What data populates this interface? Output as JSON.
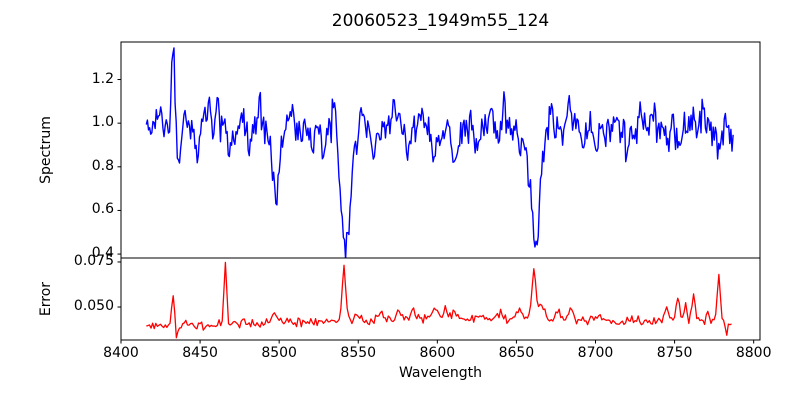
{
  "chart_data": {
    "type": "line",
    "title": "20060523_1949m55_124",
    "xlabel": "Wavelength",
    "xlim": [
      8400,
      8804
    ],
    "x_ticks": [
      8400,
      8450,
      8500,
      8550,
      8600,
      8650,
      8700,
      8750,
      8800
    ],
    "grid": false,
    "legend": "none",
    "subplots": [
      {
        "ylabel": "Spectrum",
        "ylim": [
          0.382,
          1.372
        ],
        "y_ticks": [
          0.4,
          0.6,
          0.8,
          1.0,
          1.2
        ],
        "y_tick_labels": [
          "0.4",
          "0.6",
          "0.8",
          "1.0",
          "1.2"
        ],
        "key_points": {
          "continuum_level": 1.0,
          "emission_spike": {
            "x": 8433,
            "y": 1.33
          },
          "absorption_lines": [
            {
              "x": 8498,
              "y": 0.7
            },
            {
              "x": 8542,
              "y": 0.44
            },
            {
              "x": 8662,
              "y": 0.46
            }
          ],
          "data_range": [
            8416,
            8787
          ]
        },
        "series": [
          {
            "name": "spectrum",
            "color": "#0000ff",
            "line_width": 1.4,
            "x_start": 8416,
            "x_end": 8787,
            "step": 0.7,
            "seed": 20060523,
            "noise_amplitude": 0.1,
            "baseline_points": [
              [
                8416,
                0.995
              ],
              [
                8480,
                0.98
              ],
              [
                8550,
                0.985
              ],
              [
                8620,
                0.975
              ],
              [
                8700,
                0.972
              ],
              [
                8787,
                0.962
              ]
            ],
            "features": [
              [
                8433,
                1.0,
                0.355
              ],
              [
                8436.5,
                1.1,
                -0.12
              ],
              [
                8448,
                1.2,
                -0.1
              ],
              [
                8455,
                1.0,
                0.08
              ],
              [
                8461,
                1.0,
                0.12
              ],
              [
                8469,
                1.4,
                -0.13
              ],
              [
                8476,
                1.0,
                0.07
              ],
              [
                8481,
                1.0,
                -0.09
              ],
              [
                8487,
                1.0,
                0.13
              ],
              [
                8498,
                2.2,
                -0.29
              ],
              [
                8508,
                1.1,
                0.12
              ],
              [
                8514,
                1.1,
                -0.09
              ],
              [
                8521,
                1.2,
                -0.11
              ],
              [
                8528,
                1.2,
                -0.13
              ],
              [
                8535,
                1.0,
                0.16
              ],
              [
                8542,
                3.2,
                -0.55
              ],
              [
                8552,
                1.1,
                0.08
              ],
              [
                8560,
                1.2,
                -0.11
              ],
              [
                8572,
                1.0,
                0.1
              ],
              [
                8582,
                1.2,
                -0.11
              ],
              [
                8590,
                1.0,
                0.08
              ],
              [
                8598,
                1.3,
                -0.16
              ],
              [
                8611,
                1.3,
                -0.15
              ],
              [
                8625,
                1.2,
                -0.09
              ],
              [
                8634,
                1.0,
                0.09
              ],
              [
                8642,
                1.0,
                0.1
              ],
              [
                8652,
                1.6,
                -0.1
              ],
              [
                8662,
                3.0,
                -0.52
              ],
              [
                8671,
                1.0,
                0.08
              ],
              [
                8683,
                1.0,
                0.16
              ],
              [
                8692,
                1.0,
                -0.08
              ],
              [
                8700,
                1.2,
                -0.1
              ],
              [
                8712,
                1.0,
                0.08
              ],
              [
                8720,
                1.2,
                -0.11
              ],
              [
                8729,
                1.0,
                0.07
              ],
              [
                8736,
                1.0,
                0.09
              ],
              [
                8745,
                1.0,
                -0.08
              ],
              [
                8753,
                1.2,
                -0.12
              ],
              [
                8762,
                1.0,
                0.08
              ],
              [
                8768,
                1.0,
                0.11
              ],
              [
                8778,
                1.2,
                -0.1
              ]
            ]
          }
        ]
      },
      {
        "ylabel": "Error",
        "ylim": [
          0.0317,
          0.0772
        ],
        "y_ticks": [
          0.05,
          0.075
        ],
        "y_tick_labels": [
          "0.050",
          "0.075"
        ],
        "key_points": {
          "baseline_level": 0.042,
          "spikes": [
            {
              "x": 8433,
              "y": 0.058
            },
            {
              "x": 8466,
              "y": 0.074
            },
            {
              "x": 8541,
              "y": 0.072
            },
            {
              "x": 8661,
              "y": 0.074
            },
            {
              "x": 8762,
              "y": 0.058
            },
            {
              "x": 8778,
              "y": 0.07
            }
          ],
          "data_range": [
            8416,
            8786
          ]
        },
        "series": [
          {
            "name": "error",
            "color": "#ff0000",
            "line_width": 1.3,
            "x_start": 8416,
            "x_end": 8786,
            "step": 1.0,
            "seed": 1949,
            "noise_amplitude": 0.003,
            "baseline_points": [
              [
                8416,
                0.0393
              ],
              [
                8450,
                0.04
              ],
              [
                8480,
                0.0408
              ],
              [
                8510,
                0.0415
              ],
              [
                8540,
                0.042
              ],
              [
                8570,
                0.0428
              ],
              [
                8600,
                0.0432
              ],
              [
                8640,
                0.043
              ],
              [
                8680,
                0.0428
              ],
              [
                8720,
                0.0422
              ],
              [
                8755,
                0.0425
              ],
              [
                8786,
                0.0408
              ]
            ],
            "features": [
              [
                8433,
                0.9,
                0.018
              ],
              [
                8435.5,
                0.7,
                -0.0075
              ],
              [
                8466,
                0.9,
                0.033
              ],
              [
                8497,
                1.5,
                0.006
              ],
              [
                8541,
                1.1,
                0.029
              ],
              [
                8550,
                1.5,
                0.003
              ],
              [
                8565,
                2.0,
                0.004
              ],
              [
                8576,
                2.0,
                0.005
              ],
              [
                8584,
                1.5,
                0.006
              ],
              [
                8598,
                1.5,
                0.007
              ],
              [
                8605,
                1.5,
                0.005
              ],
              [
                8611,
                1.5,
                0.005
              ],
              [
                8628,
                2.0,
                0.003
              ],
              [
                8640,
                2.0,
                0.004
              ],
              [
                8652,
                2.0,
                0.007
              ],
              [
                8661,
                1.3,
                0.028
              ],
              [
                8666,
                2.0,
                0.009
              ],
              [
                8676,
                1.5,
                0.005
              ],
              [
                8684,
                1.5,
                0.006
              ],
              [
                8700,
                2.0,
                0.003
              ],
              [
                8745,
                1.1,
                0.008
              ],
              [
                8752,
                1.1,
                0.013
              ],
              [
                8757,
                0.9,
                0.008
              ],
              [
                8762,
                1.1,
                0.015
              ],
              [
                8771,
                0.9,
                0.006
              ],
              [
                8778,
                0.9,
                0.027
              ],
              [
                8783,
                0.8,
                -0.004
              ]
            ]
          }
        ]
      }
    ]
  }
}
